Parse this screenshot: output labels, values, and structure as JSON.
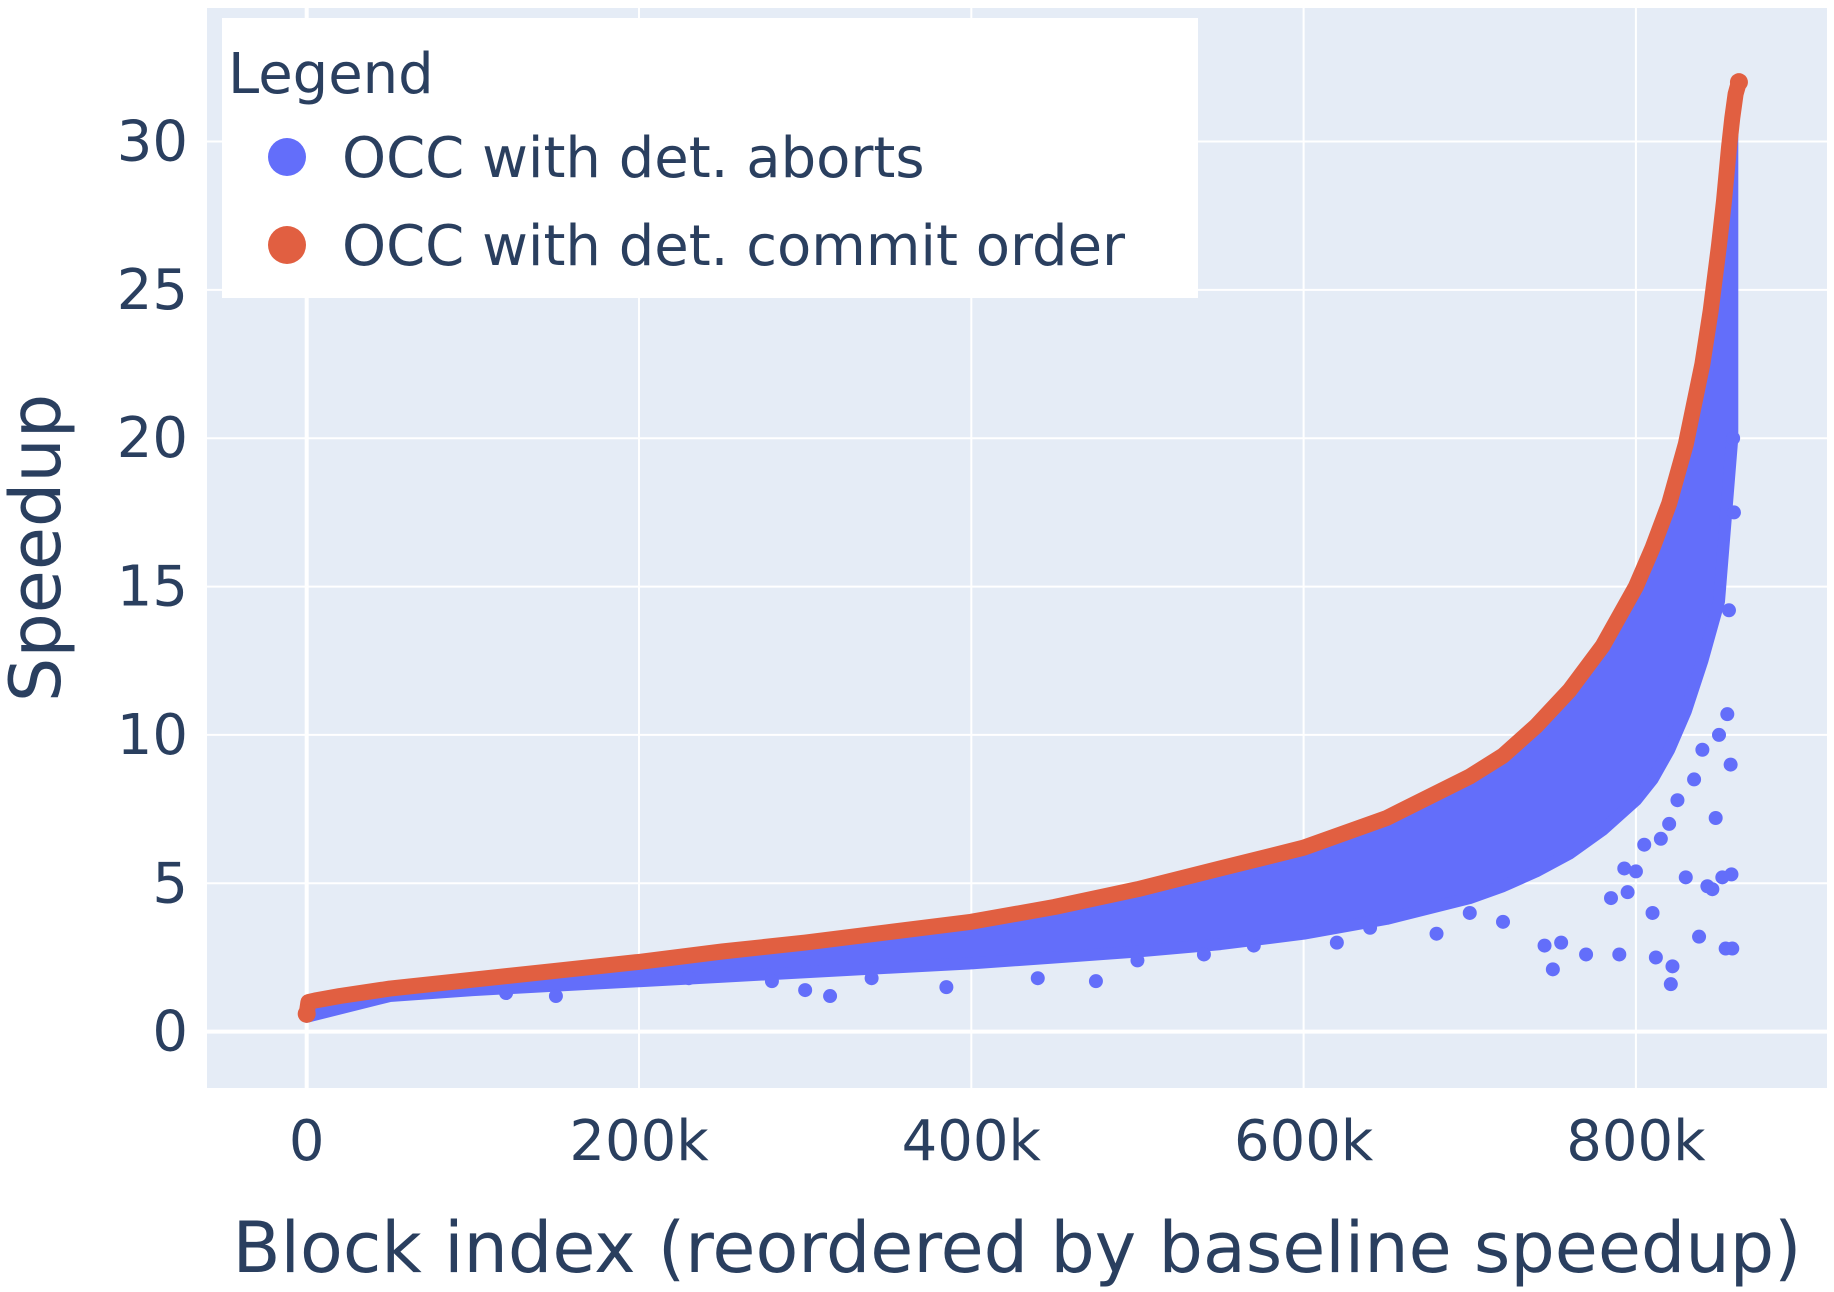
{
  "chart_data": {
    "type": "scatter",
    "title": "",
    "xlabel": "Block index (reordered by baseline speedup)",
    "ylabel": "Speedup",
    "xlim": [
      -60000,
      915000
    ],
    "ylim": [
      -1.9,
      34.5
    ],
    "x_ticks": [
      0,
      200000,
      400000,
      600000,
      800000
    ],
    "x_tick_labels": [
      "0",
      "200k",
      "400k",
      "600k",
      "800k"
    ],
    "y_ticks": [
      0,
      5,
      10,
      15,
      20,
      25,
      30
    ],
    "y_tick_labels": [
      "0",
      "5",
      "10",
      "15",
      "20",
      "25",
      "30"
    ],
    "grid": true,
    "legend_position": "top-left",
    "legend": {
      "title": "Legend",
      "entries": [
        "OCC with det. aborts",
        "OCC with det. commit order"
      ]
    },
    "colors": {
      "plot_bg": "#e5ecf6",
      "grid": "#ffffff",
      "text": "#2a3f5f",
      "series_aborts": "#636efa",
      "series_commit": "#e15f41"
    },
    "series": [
      {
        "name": "OCC with det. aborts",
        "color": "#636efa",
        "band": {
          "x": [
            0,
            50000,
            100000,
            150000,
            200000,
            250000,
            300000,
            350000,
            400000,
            450000,
            500000,
            550000,
            600000,
            650000,
            700000,
            720000,
            740000,
            760000,
            780000,
            800000,
            810000,
            820000,
            830000,
            840000,
            850000,
            858000
          ],
          "y_low": [
            0.5,
            1.2,
            1.4,
            1.55,
            1.7,
            1.85,
            2.0,
            2.15,
            2.3,
            2.5,
            2.7,
            2.95,
            3.3,
            3.8,
            4.5,
            4.9,
            5.4,
            6.0,
            6.8,
            7.8,
            8.5,
            9.5,
            10.8,
            12.5,
            14.5,
            20.0
          ]
        },
        "outliers": [
          {
            "x": 120000,
            "y": 1.3
          },
          {
            "x": 150000,
            "y": 1.2
          },
          {
            "x": 230000,
            "y": 1.8
          },
          {
            "x": 280000,
            "y": 1.7
          },
          {
            "x": 300000,
            "y": 1.4
          },
          {
            "x": 315000,
            "y": 1.2
          },
          {
            "x": 340000,
            "y": 1.8
          },
          {
            "x": 385000,
            "y": 1.5
          },
          {
            "x": 440000,
            "y": 1.8
          },
          {
            "x": 475000,
            "y": 1.7
          },
          {
            "x": 500000,
            "y": 2.4
          },
          {
            "x": 540000,
            "y": 2.6
          },
          {
            "x": 570000,
            "y": 2.9
          },
          {
            "x": 620000,
            "y": 3.0
          },
          {
            "x": 640000,
            "y": 3.5
          },
          {
            "x": 680000,
            "y": 3.3
          },
          {
            "x": 700000,
            "y": 4.0
          },
          {
            "x": 720000,
            "y": 3.7
          },
          {
            "x": 745000,
            "y": 2.9
          },
          {
            "x": 750000,
            "y": 2.1
          },
          {
            "x": 755000,
            "y": 3.0
          },
          {
            "x": 770000,
            "y": 2.6
          },
          {
            "x": 785000,
            "y": 4.5
          },
          {
            "x": 790000,
            "y": 2.6
          },
          {
            "x": 793000,
            "y": 5.5
          },
          {
            "x": 795000,
            "y": 4.7
          },
          {
            "x": 800000,
            "y": 5.4
          },
          {
            "x": 805000,
            "y": 6.3
          },
          {
            "x": 810000,
            "y": 4.0
          },
          {
            "x": 812000,
            "y": 2.5
          },
          {
            "x": 815000,
            "y": 6.5
          },
          {
            "x": 820000,
            "y": 7.0
          },
          {
            "x": 821000,
            "y": 1.6
          },
          {
            "x": 822000,
            "y": 2.2
          },
          {
            "x": 825000,
            "y": 7.8
          },
          {
            "x": 830000,
            "y": 5.2
          },
          {
            "x": 835000,
            "y": 8.5
          },
          {
            "x": 838000,
            "y": 3.2
          },
          {
            "x": 840000,
            "y": 9.5
          },
          {
            "x": 843000,
            "y": 4.9
          },
          {
            "x": 846000,
            "y": 4.8
          },
          {
            "x": 848000,
            "y": 7.2
          },
          {
            "x": 850000,
            "y": 10.0
          },
          {
            "x": 852000,
            "y": 5.2
          },
          {
            "x": 854000,
            "y": 2.8
          },
          {
            "x": 855000,
            "y": 10.7
          },
          {
            "x": 856000,
            "y": 14.2
          },
          {
            "x": 857000,
            "y": 9.0
          },
          {
            "x": 857500,
            "y": 5.3
          },
          {
            "x": 858000,
            "y": 2.8
          },
          {
            "x": 858500,
            "y": 20.0
          },
          {
            "x": 859000,
            "y": 17.5
          }
        ]
      },
      {
        "name": "OCC with det. commit order",
        "color": "#e15f41",
        "x": [
          0,
          1000,
          5000,
          20000,
          50000,
          100000,
          150000,
          200000,
          250000,
          300000,
          350000,
          400000,
          450000,
          500000,
          550000,
          600000,
          650000,
          700000,
          720000,
          740000,
          760000,
          780000,
          800000,
          810000,
          820000,
          830000,
          840000,
          845000,
          850000,
          853000,
          856000,
          858000,
          860000,
          862000
        ],
        "y": [
          0.6,
          1.0,
          1.05,
          1.2,
          1.45,
          1.75,
          2.05,
          2.35,
          2.7,
          3.0,
          3.35,
          3.7,
          4.2,
          4.8,
          5.5,
          6.2,
          7.2,
          8.6,
          9.3,
          10.3,
          11.5,
          13.0,
          15.0,
          16.3,
          17.8,
          19.8,
          22.5,
          24.3,
          26.5,
          28.0,
          29.8,
          30.8,
          31.6,
          32.0
        ]
      }
    ]
  }
}
